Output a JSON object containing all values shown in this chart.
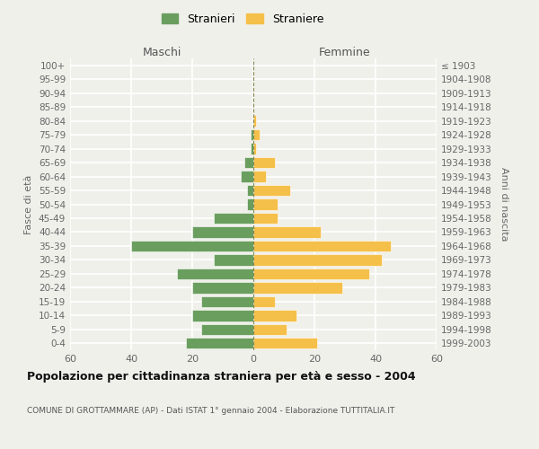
{
  "age_groups": [
    "0-4",
    "5-9",
    "10-14",
    "15-19",
    "20-24",
    "25-29",
    "30-34",
    "35-39",
    "40-44",
    "45-49",
    "50-54",
    "55-59",
    "60-64",
    "65-69",
    "70-74",
    "75-79",
    "80-84",
    "85-89",
    "90-94",
    "95-99",
    "100+"
  ],
  "birth_years": [
    "1999-2003",
    "1994-1998",
    "1989-1993",
    "1984-1988",
    "1979-1983",
    "1974-1978",
    "1969-1973",
    "1964-1968",
    "1959-1963",
    "1954-1958",
    "1949-1953",
    "1944-1948",
    "1939-1943",
    "1934-1938",
    "1929-1933",
    "1924-1928",
    "1919-1923",
    "1914-1918",
    "1909-1913",
    "1904-1908",
    "≤ 1903"
  ],
  "maschi": [
    22,
    17,
    20,
    17,
    20,
    25,
    13,
    40,
    20,
    13,
    2,
    2,
    4,
    3,
    1,
    1,
    0,
    0,
    0,
    0,
    0
  ],
  "femmine": [
    21,
    11,
    14,
    7,
    29,
    38,
    42,
    45,
    22,
    8,
    8,
    12,
    4,
    7,
    1,
    2,
    1,
    0,
    0,
    0,
    0
  ],
  "color_maschi": "#6a9e5e",
  "color_femmine": "#f5c04a",
  "title": "Popolazione per cittadinanza straniera per età e sesso - 2004",
  "subtitle": "COMUNE DI GROTTAMMARE (AP) - Dati ISTAT 1° gennaio 2004 - Elaborazione TUTTITALIA.IT",
  "xlabel_left": "Maschi",
  "xlabel_right": "Femmine",
  "ylabel_left": "Fasce di età",
  "ylabel_right": "Anni di nascita",
  "legend_stranieri": "Stranieri",
  "legend_straniere": "Straniere",
  "xlim": 60,
  "background_color": "#f0f0eb",
  "grid_color": "#ffffff"
}
